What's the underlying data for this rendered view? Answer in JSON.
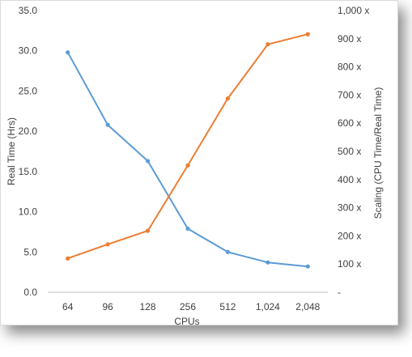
{
  "chart_data": {
    "type": "line",
    "xlabel": "CPUs",
    "ylabel_left": "Real Time (Hrs)",
    "ylabel_right": "Scaling (CPU Time/Real Time)",
    "categories": [
      "64",
      "96",
      "128",
      "256",
      "512",
      "1,024",
      "2,048"
    ],
    "left_axis": {
      "min": 0,
      "max": 35,
      "ticks": [
        "0.0",
        "5.0",
        "10.0",
        "15.0",
        "20.0",
        "25.0",
        "30.0",
        "35.0"
      ]
    },
    "right_axis": {
      "min": 0,
      "max": 1000,
      "ticks": [
        "-",
        "100 x",
        "200 x",
        "300 x",
        "400 x",
        "500 x",
        "600 x",
        "700 x",
        "800 x",
        "900 x",
        "1,000 x"
      ]
    },
    "gridlines": false,
    "series": [
      {
        "axis": "left",
        "color": "#5b9bd5",
        "values": [
          29.8,
          20.8,
          16.3,
          7.9,
          5.0,
          3.7,
          3.2
        ]
      },
      {
        "axis": "right",
        "color": "#ed7d31",
        "values": [
          120,
          170,
          218,
          450,
          688,
          880,
          916
        ]
      }
    ]
  }
}
